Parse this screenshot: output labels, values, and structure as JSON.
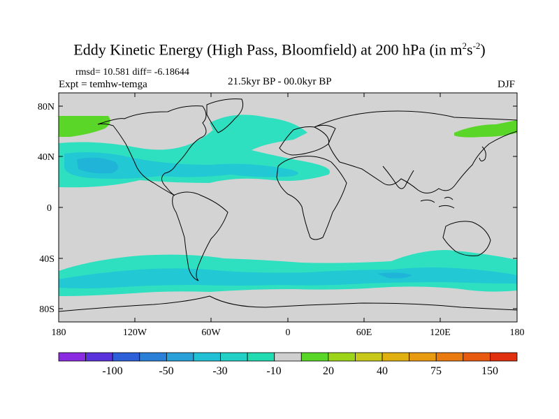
{
  "title_main": "Eddy Kinetic Energy (High Pass, Bloomfield) at 200 hPa (in m",
  "title_sup1": "2",
  "title_mid": "s",
  "title_sup2": "-2",
  "title_end": ")",
  "stats": "rmsd= 10.581  diff= -6.18644",
  "experiment": "Expt = temhw-temga",
  "center_label": "21.5kyr BP - 00.0kyr BP",
  "season": "DJF",
  "lat_labels": [
    "80N",
    "40N",
    "0",
    "40S",
    "80S"
  ],
  "lon_labels": [
    "180",
    "120W",
    "60W",
    "0",
    "60E",
    "120E",
    "180"
  ],
  "colorbar": {
    "colors": [
      "#8a2be2",
      "#5a32dc",
      "#2c5fd8",
      "#2a7fd6",
      "#2aa0d8",
      "#22c0d4",
      "#22d0c6",
      "#20dcb0",
      "#cfcfcf",
      "#5ad629",
      "#9cd419",
      "#c8c81b",
      "#e0b010",
      "#e89a10",
      "#e87a10",
      "#e85a10",
      "#e03010"
    ],
    "tick_labels": [
      "-100",
      "-50",
      "-30",
      "-10",
      "20",
      "40",
      "75",
      "150"
    ]
  },
  "colors": {
    "ocean_background": "#d3d3d3",
    "band_outer": "#2ee0c0",
    "band_inner": "#22c8d4",
    "band_core": "#20b4d8",
    "positive_green": "#5ad629"
  }
}
